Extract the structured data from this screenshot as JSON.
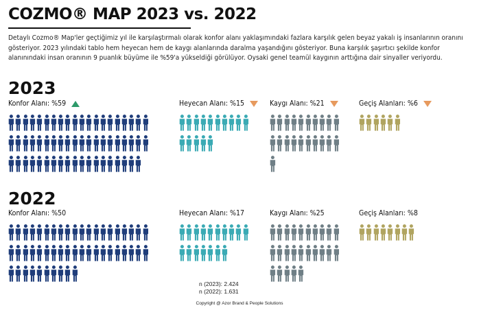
{
  "header": {
    "title": "COZMO® MAP 2023 vs. 2022",
    "description": "Detaylı Cozmo® Map'ler geçtiğimiz yıl ile karşılaştırmalı olarak konfor alanı yaklaşımındaki fazlara karşılık gelen beyaz yakalı iş insanlarının oranını gösteriyor. 2023 yılındaki tablo hem heyecan hem de kaygı alanlarında daralma yaşandığını gösteriyor. Buna karşılık şaşırtıcı şekilde konfor alanınındaki insan oranının 9 puanlık büyüme ile %59'a yükseldiği görülüyor. Oysaki genel teamül kaygının arttığına dair sinyaller veriyordu."
  },
  "colors": {
    "konfor": "#1f3d7a",
    "heyecan": "#3aaab4",
    "kaygi": "#6f7f86",
    "gecis": "#b0a460",
    "trend_up": "#2e9a6a",
    "trend_down": "#e79a5e"
  },
  "chart_data": {
    "type": "pictogram",
    "title": "COZMO® MAP 2023 vs. 2022",
    "unit": "%",
    "categories": [
      "Konfor Alanı",
      "Heyecan Alanı",
      "Kaygı Alanı",
      "Geçiş Alanları"
    ],
    "series": [
      {
        "name": "2023",
        "values": [
          59,
          15,
          21,
          6
        ],
        "labels": [
          "Konfor Alanı: %59",
          "Heyecan Alanı: %15",
          "Kaygı Alanı: %21",
          "Geçiş Alanları: %6"
        ],
        "trend": [
          "up",
          "down",
          "down",
          "down"
        ]
      },
      {
        "name": "2022",
        "values": [
          50,
          17,
          25,
          8
        ],
        "labels": [
          "Konfor Alanı: %50",
          "Heyecan Alanı: %17",
          "Kaygı Alanı: %25",
          "Geçiş Alanları: %8"
        ]
      }
    ],
    "sample_sizes": [
      "n (2023): 2.424",
      "n (2022): 1.631"
    ],
    "icon": "person-icon"
  },
  "footer": {
    "copyright": "Copyright @ Azor Brand & People Solutions"
  }
}
